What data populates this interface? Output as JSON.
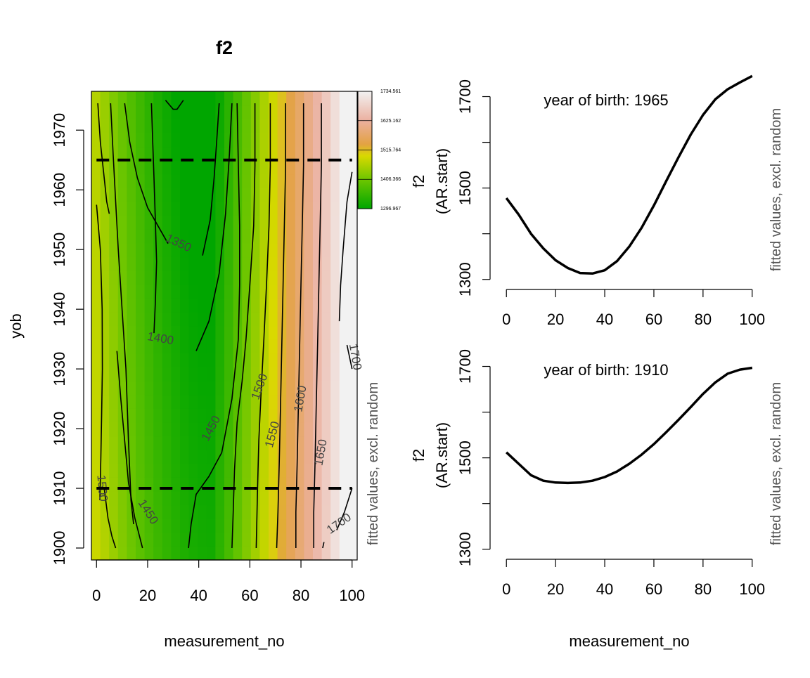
{
  "chart_data": [
    {
      "type": "heatmap",
      "title": "f2",
      "xlabel": "measurement_no",
      "ylabel": "yob",
      "side_label": "fitted values, excl. random",
      "xlim": [
        0,
        100
      ],
      "ylim": [
        1900,
        1975
      ],
      "x_ticks": [
        0,
        20,
        40,
        60,
        80,
        100
      ],
      "y_ticks": [
        1900,
        1910,
        1920,
        1930,
        1940,
        1950,
        1960,
        1970
      ],
      "zlim": [
        1296.967,
        1734.561
      ],
      "color_key": {
        "labels": [
          "1734.561",
          "1625.162",
          "1515.764",
          "1406.366",
          "1296.967"
        ],
        "values": [
          1734.561,
          1625.162,
          1515.764,
          1406.366,
          1296.967
        ],
        "colors": [
          "#f2f2f2",
          "#ebb09f",
          "#e3a243",
          "#d9d900",
          "#6ec600",
          "#00a600"
        ]
      },
      "reference_lines": [
        {
          "axis": "y",
          "value": 1965,
          "style": "dashed"
        },
        {
          "axis": "y",
          "value": 1910,
          "style": "dashed"
        }
      ],
      "contour_levels": [
        1350,
        1400,
        1450,
        1500,
        1550,
        1600,
        1650,
        1700
      ],
      "contour_labels": [
        {
          "text": "1350",
          "x": 32,
          "y": 1951
        },
        {
          "text": "1400",
          "x": 25,
          "y": 1935
        },
        {
          "text": "1450",
          "x": 45,
          "y": 1920
        },
        {
          "text": "1500",
          "x": 64,
          "y": 1927
        },
        {
          "text": "1550",
          "x": 69,
          "y": 1919
        },
        {
          "text": "1600",
          "x": 80,
          "y": 1925
        },
        {
          "text": "1650",
          "x": 88,
          "y": 1916
        },
        {
          "text": "1500",
          "x": 2,
          "y": 1910
        },
        {
          "text": "1450",
          "x": 20,
          "y": 1906
        },
        {
          "text": "1700",
          "x": 101,
          "y": 1932
        },
        {
          "text": "1700",
          "x": 95,
          "y": 1904
        }
      ]
    },
    {
      "type": "line",
      "annotation": "year of birth: 1965",
      "xlabel": "",
      "ylabel": "f2",
      "ylabel_line2": "(AR.start)",
      "side_label": "fitted values, excl. random",
      "xlim": [
        0,
        100
      ],
      "ylim": [
        1300,
        1700
      ],
      "x_ticks": [
        0,
        20,
        40,
        60,
        80,
        100
      ],
      "y_ticks": [
        1300,
        1400,
        1500,
        1600,
        1700
      ],
      "y_tick_labels": [
        "1300",
        "",
        "1500",
        "",
        "1700"
      ],
      "x": [
        0,
        5,
        10,
        15,
        20,
        25,
        30,
        35,
        40,
        45,
        50,
        55,
        60,
        65,
        70,
        75,
        80,
        85,
        90,
        95,
        100
      ],
      "values": [
        1478,
        1442,
        1400,
        1368,
        1342,
        1325,
        1314,
        1313,
        1320,
        1340,
        1372,
        1413,
        1462,
        1515,
        1567,
        1617,
        1660,
        1694,
        1716,
        1731,
        1745
      ]
    },
    {
      "type": "line",
      "annotation": "year of birth: 1910",
      "xlabel": "measurement_no",
      "ylabel": "f2",
      "ylabel_line2": "(AR.start)",
      "side_label": "fitted values, excl. random",
      "xlim": [
        0,
        100
      ],
      "ylim": [
        1300,
        1700
      ],
      "x_ticks": [
        0,
        20,
        40,
        60,
        80,
        100
      ],
      "y_ticks": [
        1300,
        1400,
        1500,
        1600,
        1700
      ],
      "y_tick_labels": [
        "1300",
        "",
        "1500",
        "",
        "1700"
      ],
      "x": [
        0,
        5,
        10,
        15,
        20,
        25,
        30,
        35,
        40,
        45,
        50,
        55,
        60,
        65,
        70,
        75,
        80,
        85,
        90,
        95,
        100
      ],
      "values": [
        1512,
        1487,
        1462,
        1450,
        1446,
        1445,
        1446,
        1450,
        1458,
        1470,
        1487,
        1507,
        1530,
        1556,
        1583,
        1611,
        1640,
        1665,
        1684,
        1693,
        1697
      ]
    }
  ]
}
